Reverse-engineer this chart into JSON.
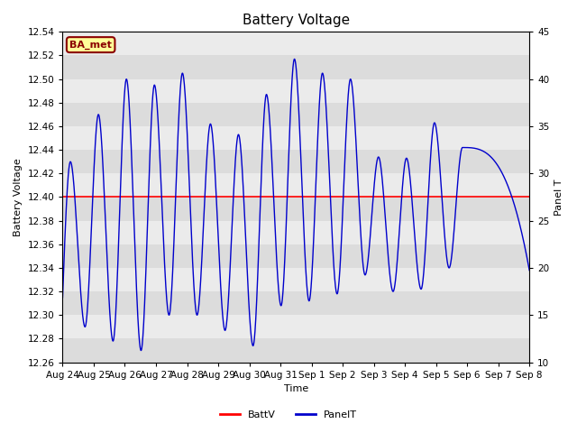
{
  "title": "Battery Voltage",
  "xlabel": "Time",
  "ylabel_left": "Battery Voltage",
  "ylabel_right": "Panel T",
  "ylim_left": [
    12.26,
    12.54
  ],
  "ylim_right": [
    10,
    45
  ],
  "yticks_left": [
    12.26,
    12.28,
    12.3,
    12.32,
    12.34,
    12.36,
    12.38,
    12.4,
    12.42,
    12.44,
    12.46,
    12.48,
    12.5,
    12.52,
    12.54
  ],
  "yticks_right": [
    10,
    15,
    20,
    25,
    30,
    35,
    40,
    45
  ],
  "xtick_labels": [
    "Aug 24",
    "Aug 25",
    "Aug 26",
    "Aug 27",
    "Aug 28",
    "Aug 29",
    "Aug 30",
    "Aug 31",
    "Sep 1",
    "Sep 2",
    "Sep 3",
    "Sep 4",
    "Sep 5",
    "Sep 6",
    "Sep 7",
    "Sep 8"
  ],
  "battv_value": 12.4,
  "battv_color": "#ff0000",
  "panelt_color": "#0000cc",
  "bg_color": "#ffffff",
  "band_colors": [
    "#dcdcdc",
    "#ebebeb"
  ],
  "annotation_text": "BA_met",
  "annotation_bg": "#ffff99",
  "annotation_border": "#8b0000",
  "legend_labels": [
    "BattV",
    "PanelT"
  ],
  "title_fontsize": 11,
  "axis_fontsize": 8,
  "tick_fontsize": 7.5,
  "figsize": [
    6.4,
    4.8
  ],
  "dpi": 100,
  "peak_heights": [
    12.43,
    12.47,
    12.5,
    12.495,
    12.505,
    12.462,
    12.453,
    12.487,
    12.517,
    12.505,
    12.5,
    12.434,
    12.433,
    12.463,
    12.442
  ],
  "valley_depths": [
    12.29,
    12.278,
    12.27,
    12.3,
    12.3,
    12.287,
    12.274,
    12.308,
    12.312,
    12.318,
    12.334,
    12.32,
    12.322,
    12.34
  ],
  "num_cycles": 15
}
